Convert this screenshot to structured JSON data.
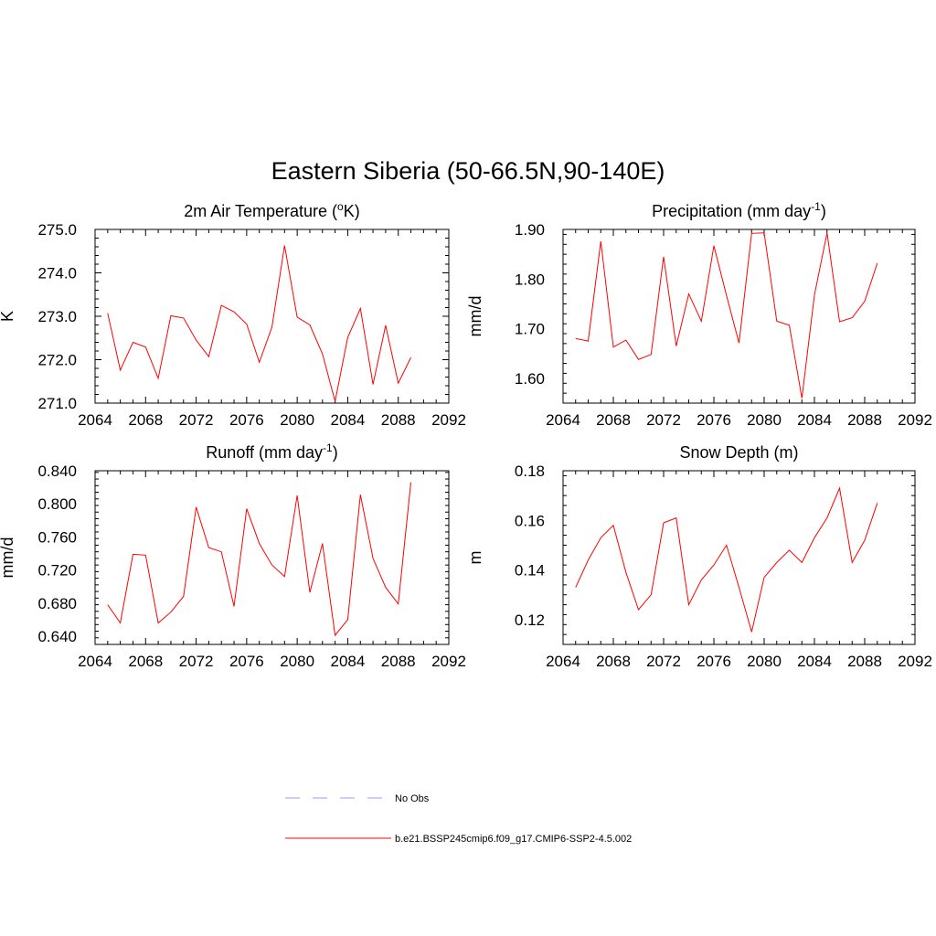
{
  "title": "Eastern Siberia (50-66.5N,90-140E)",
  "legend": [
    {
      "label": "No Obs",
      "color": "#9999ff",
      "dashed": true
    },
    {
      "label": "b.e21.BSSP245cmip6.f09_g17.CMIP6-SSP2-4.5.002",
      "color": "#ff0000",
      "dashed": false
    }
  ],
  "chart_data": [
    {
      "type": "line",
      "title": "2m Air Temperature (",
      "title_sup": "o",
      "title_after": "K)",
      "ylabel": "K",
      "xlim": [
        2064,
        2092
      ],
      "ylim": [
        271.0,
        275.0
      ],
      "xticks": [
        2064,
        2068,
        2072,
        2076,
        2080,
        2084,
        2088,
        2092
      ],
      "yticks": [
        271.0,
        272.0,
        273.0,
        274.0,
        275.0
      ],
      "ytick_labels": [
        "271.0",
        "272.0",
        "273.0",
        "274.0",
        "275.0"
      ],
      "series": [
        {
          "color": "#ff0000",
          "x": [
            2065,
            2066,
            2067,
            2068,
            2069,
            2070,
            2071,
            2072,
            2073,
            2074,
            2075,
            2076,
            2077,
            2078,
            2079,
            2080,
            2081,
            2082,
            2083,
            2084,
            2085,
            2086,
            2087,
            2088,
            2089
          ],
          "y": [
            273.07,
            271.76,
            272.4,
            272.29,
            271.57,
            273.01,
            272.96,
            272.45,
            272.07,
            273.25,
            273.1,
            272.82,
            271.94,
            272.75,
            274.63,
            272.98,
            272.8,
            272.13,
            271.04,
            272.51,
            273.18,
            271.43,
            272.79,
            271.46,
            272.05
          ]
        }
      ]
    },
    {
      "type": "line",
      "title": "Precipitation (mm day",
      "title_sup": "-1",
      "title_after": ")",
      "ylabel": "mm/d",
      "xlim": [
        2064,
        2092
      ],
      "ylim": [
        1.55,
        1.9
      ],
      "xticks": [
        2064,
        2068,
        2072,
        2076,
        2080,
        2084,
        2088,
        2092
      ],
      "yticks": [
        1.6,
        1.7,
        1.8,
        1.9
      ],
      "ytick_labels": [
        "1.60",
        "1.70",
        "1.80",
        "1.90"
      ],
      "series": [
        {
          "color": "#ff0000",
          "x": [
            2065,
            2066,
            2067,
            2068,
            2069,
            2070,
            2071,
            2072,
            2073,
            2074,
            2075,
            2076,
            2077,
            2078,
            2079,
            2080,
            2081,
            2082,
            2083,
            2084,
            2085,
            2086,
            2087,
            2088,
            2089
          ],
          "y": [
            1.68,
            1.675,
            1.876,
            1.663,
            1.677,
            1.638,
            1.648,
            1.845,
            1.665,
            1.77,
            1.715,
            1.867,
            1.767,
            1.671,
            1.892,
            1.893,
            1.715,
            1.707,
            1.56,
            1.768,
            1.893,
            1.714,
            1.722,
            1.755,
            1.832
          ]
        }
      ]
    },
    {
      "type": "line",
      "title": "Runoff (mm day",
      "title_sup": "-1",
      "title_after": ")",
      "ylabel": "mm/d",
      "xlim": [
        2064,
        2092
      ],
      "ylim": [
        0.63,
        0.84
      ],
      "xticks": [
        2064,
        2068,
        2072,
        2076,
        2080,
        2084,
        2088,
        2092
      ],
      "yticks": [
        0.64,
        0.68,
        0.72,
        0.76,
        0.8,
        0.84
      ],
      "ytick_labels": [
        "0.640",
        "0.680",
        "0.720",
        "0.760",
        "0.800",
        "0.840"
      ],
      "series": [
        {
          "color": "#ff0000",
          "x": [
            2065,
            2066,
            2067,
            2068,
            2069,
            2070,
            2071,
            2072,
            2073,
            2074,
            2075,
            2076,
            2077,
            2078,
            2079,
            2080,
            2081,
            2082,
            2083,
            2084,
            2085,
            2086,
            2087,
            2088,
            2089
          ],
          "y": [
            0.678,
            0.656,
            0.739,
            0.738,
            0.656,
            0.669,
            0.688,
            0.796,
            0.747,
            0.742,
            0.676,
            0.794,
            0.752,
            0.726,
            0.712,
            0.81,
            0.693,
            0.752,
            0.641,
            0.66,
            0.811,
            0.734,
            0.699,
            0.679,
            0.826
          ]
        }
      ]
    },
    {
      "type": "line",
      "title": "Snow Depth (m)",
      "title_sup": "",
      "title_after": "",
      "ylabel": "m",
      "xlim": [
        2064,
        2092
      ],
      "ylim": [
        0.11,
        0.18
      ],
      "xticks": [
        2064,
        2068,
        2072,
        2076,
        2080,
        2084,
        2088,
        2092
      ],
      "yticks": [
        0.12,
        0.14,
        0.16,
        0.18
      ],
      "ytick_labels": [
        "0.12",
        "0.14",
        "0.16",
        "0.18"
      ],
      "series": [
        {
          "color": "#ff0000",
          "x": [
            2065,
            2066,
            2067,
            2068,
            2069,
            2070,
            2071,
            2072,
            2073,
            2074,
            2075,
            2076,
            2077,
            2078,
            2079,
            2080,
            2081,
            2082,
            2083,
            2084,
            2085,
            2086,
            2087,
            2088,
            2089
          ],
          "y": [
            0.133,
            0.144,
            0.153,
            0.158,
            0.139,
            0.124,
            0.13,
            0.159,
            0.161,
            0.126,
            0.136,
            0.142,
            0.15,
            0.133,
            0.115,
            0.137,
            0.143,
            0.148,
            0.143,
            0.153,
            0.161,
            0.173,
            0.143,
            0.152,
            0.167
          ]
        }
      ]
    }
  ]
}
